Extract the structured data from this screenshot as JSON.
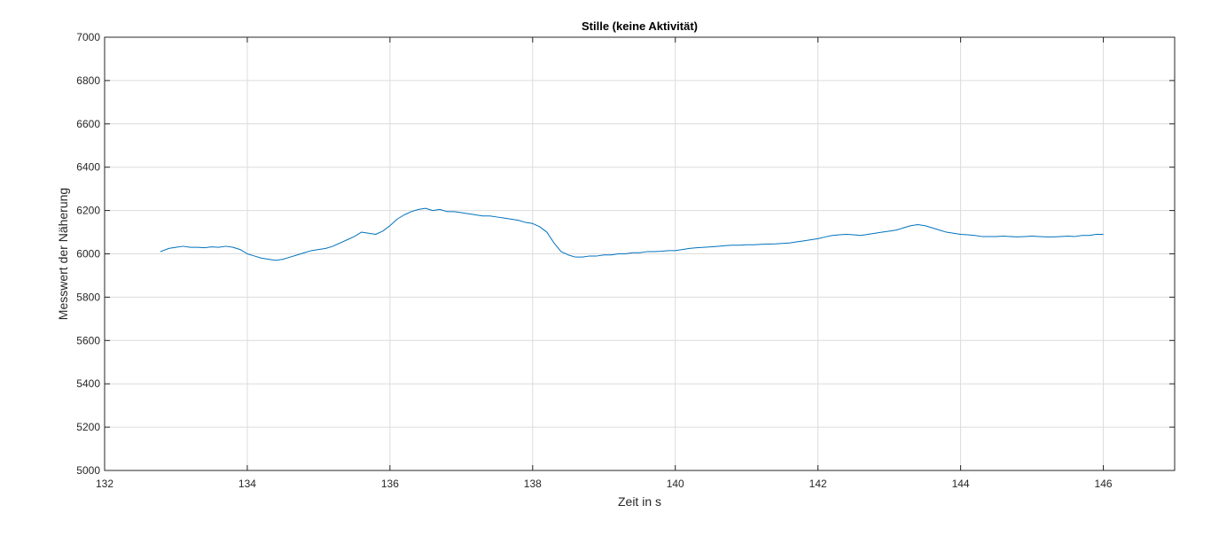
{
  "chart_data": {
    "type": "line",
    "title": "Stille (keine Aktivität)",
    "xlabel": "Zeit in s",
    "ylabel": "Messwert der Näherung",
    "xlim": [
      132,
      147
    ],
    "ylim": [
      5000,
      7000
    ],
    "x_ticks": [
      132,
      134,
      136,
      138,
      140,
      142,
      144,
      146
    ],
    "y_ticks": [
      5000,
      5200,
      5400,
      5600,
      5800,
      6000,
      6200,
      6400,
      6600,
      6800,
      7000
    ],
    "grid": true,
    "line_color": "#0072BD",
    "series": [
      {
        "x": [
          132.78,
          132.9,
          133.0,
          133.1,
          133.2,
          133.3,
          133.4,
          133.5,
          133.6,
          133.7,
          133.8,
          133.9,
          134.0,
          134.1,
          134.2,
          134.3,
          134.4,
          134.5,
          134.6,
          134.7,
          134.8,
          134.9,
          135.0,
          135.1,
          135.2,
          135.3,
          135.4,
          135.5,
          135.6,
          135.7,
          135.8,
          135.9,
          136.0,
          136.1,
          136.2,
          136.3,
          136.4,
          136.5,
          136.6,
          136.7,
          136.8,
          136.9,
          137.0,
          137.1,
          137.2,
          137.3,
          137.4,
          137.5,
          137.6,
          137.7,
          137.8,
          137.9,
          138.0,
          138.1,
          138.2,
          138.3,
          138.4,
          138.5,
          138.6,
          138.7,
          138.8,
          138.9,
          139.0,
          139.1,
          139.2,
          139.3,
          139.4,
          139.5,
          139.6,
          139.7,
          139.8,
          139.9,
          140.0,
          140.1,
          140.2,
          140.3,
          140.4,
          140.5,
          140.6,
          140.7,
          140.8,
          140.9,
          141.0,
          141.1,
          141.2,
          141.3,
          141.4,
          141.5,
          141.6,
          141.7,
          141.8,
          141.9,
          142.0,
          142.1,
          142.2,
          142.3,
          142.4,
          142.5,
          142.6,
          142.7,
          142.8,
          142.9,
          143.0,
          143.1,
          143.2,
          143.3,
          143.4,
          143.5,
          143.6,
          143.7,
          143.8,
          143.9,
          144.0,
          144.1,
          144.2,
          144.3,
          144.4,
          144.5,
          144.6,
          144.7,
          144.8,
          144.9,
          145.0,
          145.1,
          145.2,
          145.3,
          145.4,
          145.5,
          145.6,
          145.7,
          145.8,
          145.9,
          146.0
        ],
        "y": [
          6010,
          6025,
          6030,
          6035,
          6030,
          6030,
          6028,
          6032,
          6030,
          6035,
          6030,
          6020,
          6000,
          5990,
          5980,
          5975,
          5970,
          5975,
          5985,
          5995,
          6005,
          6015,
          6020,
          6025,
          6035,
          6050,
          6065,
          6080,
          6100,
          6095,
          6090,
          6105,
          6130,
          6160,
          6180,
          6195,
          6205,
          6210,
          6200,
          6205,
          6195,
          6195,
          6190,
          6185,
          6180,
          6175,
          6175,
          6170,
          6165,
          6160,
          6155,
          6145,
          6140,
          6125,
          6100,
          6050,
          6010,
          5995,
          5985,
          5985,
          5990,
          5990,
          5995,
          5995,
          6000,
          6000,
          6005,
          6005,
          6010,
          6010,
          6012,
          6015,
          6015,
          6020,
          6025,
          6028,
          6030,
          6032,
          6035,
          6038,
          6040,
          6040,
          6042,
          6042,
          6044,
          6045,
          6046,
          6048,
          6050,
          6055,
          6060,
          6065,
          6070,
          6078,
          6085,
          6088,
          6090,
          6088,
          6085,
          6090,
          6095,
          6100,
          6105,
          6110,
          6120,
          6130,
          6135,
          6130,
          6120,
          6110,
          6100,
          6095,
          6090,
          6088,
          6085,
          6080,
          6080,
          6080,
          6082,
          6080,
          6078,
          6080,
          6082,
          6080,
          6078,
          6078,
          6080,
          6082,
          6080,
          6085,
          6085,
          6090,
          6090
        ]
      }
    ]
  }
}
